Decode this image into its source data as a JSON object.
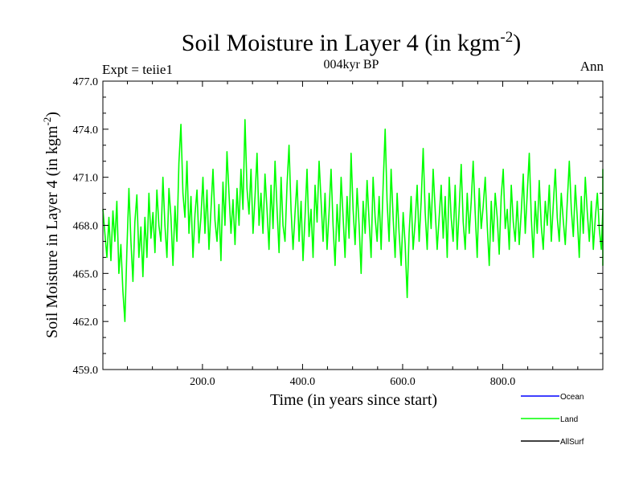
{
  "chart_data": {
    "type": "line",
    "title": "Soil Moisture in Layer 4 (in kgm",
    "title_sup": "-2",
    "title_close": ")",
    "subtitle_left": "Expt = teiie1",
    "subtitle_center": "004kyr BP",
    "subtitle_right": "Ann",
    "xlabel": "Time (in years since start)",
    "ylabel": "Soil Moisture in Layer 4 (in kgm",
    "ylabel_sup": "-2",
    "ylabel_close": ")",
    "xlim": [
      1,
      1000
    ],
    "ylim": [
      459.0,
      477.0
    ],
    "x_ticks": [
      200,
      400,
      600,
      800
    ],
    "x_tick_labels": [
      "200.0",
      "400.0",
      "600.0",
      "800.0"
    ],
    "y_ticks": [
      459.0,
      462.0,
      465.0,
      468.0,
      471.0,
      474.0,
      477.0
    ],
    "y_tick_labels": [
      "459.0",
      "462.0",
      "465.0",
      "468.0",
      "471.0",
      "474.0",
      "477.0"
    ],
    "legend_placement": "bottom-right, outside plot",
    "series": [
      {
        "name": "Ocean",
        "color": "#0000ff",
        "values": []
      },
      {
        "name": "Land",
        "color": "#00ff00",
        "x_start": 1,
        "x_step": 4,
        "values": [
          469.0,
          467.5,
          466.0,
          468.5,
          465.8,
          468.9,
          467.0,
          469.5,
          465.0,
          466.8,
          463.9,
          462.0,
          466.5,
          470.3,
          467.0,
          464.5,
          468.2,
          469.9,
          466.0,
          467.9,
          464.8,
          468.5,
          466.0,
          470.0,
          467.2,
          468.8,
          466.3,
          470.2,
          468.0,
          467.0,
          471.0,
          468.0,
          466.0,
          470.3,
          468.5,
          465.5,
          469.2,
          467.0,
          471.9,
          474.3,
          470.0,
          468.5,
          472.0,
          467.5,
          469.8,
          466.0,
          468.7,
          470.2,
          466.9,
          468.5,
          471.0,
          467.5,
          470.2,
          466.5,
          469.0,
          471.5,
          468.3,
          467.0,
          469.3,
          465.8,
          470.7,
          468.0,
          472.6,
          470.0,
          467.5,
          469.6,
          466.8,
          470.3,
          468.0,
          471.5,
          469.0,
          474.6,
          470.3,
          468.7,
          471.5,
          467.5,
          469.8,
          472.5,
          468.0,
          470.0,
          467.5,
          471.2,
          469.0,
          466.5,
          470.5,
          467.8,
          472.0,
          469.0,
          466.3,
          471.0,
          468.0,
          467.0,
          470.5,
          473.0,
          469.0,
          466.5,
          468.8,
          470.8,
          467.0,
          469.5,
          465.8,
          468.5,
          471.5,
          467.3,
          469.0,
          466.0,
          470.5,
          468.2,
          472.0,
          469.5,
          467.0,
          470.0,
          466.5,
          468.8,
          471.5,
          468.0,
          465.5,
          469.3,
          467.0,
          471.0,
          468.5,
          466.0,
          469.8,
          467.2,
          472.5,
          469.0,
          466.8,
          470.3,
          468.0,
          465.0,
          469.5,
          467.5,
          470.8,
          468.3,
          466.0,
          471.0,
          468.5,
          467.0,
          469.8,
          466.5,
          470.5,
          474.0,
          469.5,
          467.0,
          471.5,
          468.5,
          466.0,
          470.0,
          467.5,
          465.5,
          468.8,
          466.8,
          463.5,
          467.5,
          469.8,
          466.5,
          468.2,
          470.5,
          467.0,
          469.5,
          472.8,
          468.8,
          466.5,
          470.0,
          467.8,
          471.5,
          469.0,
          466.5,
          468.5,
          470.5,
          467.2,
          469.8,
          466.0,
          471.0,
          468.5,
          467.0,
          470.5,
          466.5,
          469.0,
          471.8,
          468.2,
          466.5,
          470.0,
          467.5,
          469.5,
          472.0,
          468.8,
          466.0,
          470.3,
          467.8,
          469.2,
          471.0,
          468.0,
          465.5,
          469.5,
          467.0,
          470.0,
          468.5,
          466.2,
          469.8,
          471.5,
          467.8,
          469.0,
          466.5,
          470.5,
          468.2,
          467.0,
          469.5,
          466.8,
          468.8,
          471.2,
          467.5,
          470.0,
          472.5,
          468.5,
          466.0,
          469.5,
          467.5,
          470.8,
          468.0,
          466.5,
          469.5,
          468.0,
          470.5,
          467.0,
          469.3,
          471.5,
          468.5,
          467.0,
          470.0,
          468.3,
          466.8,
          469.5,
          472.0,
          469.0,
          467.3,
          470.5,
          468.5,
          466.0,
          469.8,
          467.5,
          471.0,
          468.8,
          467.0,
          469.5,
          466.5,
          468.5,
          470.0,
          467.8,
          466.5,
          469.0,
          471.5,
          468.0,
          465.5,
          467.5,
          469.0,
          466.0,
          468.3
        ]
      },
      {
        "name": "AllSurf",
        "color": "#000000",
        "values": []
      }
    ]
  }
}
